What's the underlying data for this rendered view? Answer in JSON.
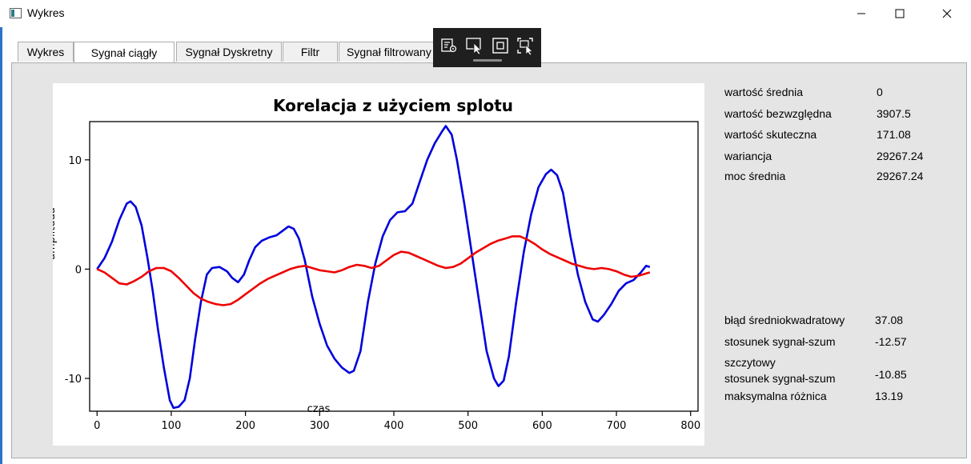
{
  "window": {
    "title": "Wykres",
    "controls": [
      "minimize-icon",
      "maximize-icon",
      "close-icon"
    ]
  },
  "tabs": [
    {
      "label": "Wykres",
      "active": false
    },
    {
      "label": "Sygnał ciągły",
      "active": true
    },
    {
      "label": "Sygnał Dyskretny",
      "active": false
    },
    {
      "label": "Filtr",
      "active": false
    },
    {
      "label": "Sygnał filtrowany",
      "active": false
    }
  ],
  "capture_toolbar": {
    "icons": [
      "record-settings-icon",
      "select-cursor-icon",
      "fullscreen-capture-icon",
      "region-capture-icon"
    ]
  },
  "stats": [
    {
      "label": "wartość średnia",
      "value": "0"
    },
    {
      "label": "wartość bezwzględna",
      "value": "3907.5"
    },
    {
      "label": "wartość skuteczna",
      "value": "171.08"
    },
    {
      "label": "wariancja",
      "value": "29267.24"
    },
    {
      "label": "moc średnia",
      "value": "29267.24"
    }
  ],
  "errors": [
    {
      "label": "błąd średniokwadratowy",
      "value": "37.08"
    },
    {
      "label": "stosunek sygnał-szum",
      "value": "-12.57"
    },
    {
      "label_line1": "szczytowy",
      "label_line2": "stosunek sygnał-szum",
      "value": "-10.85"
    },
    {
      "label": "maksymalna różnica",
      "value": "13.19"
    }
  ],
  "chart_data": {
    "type": "line",
    "title": "Korelacja z użyciem splotu",
    "xlabel": "czas",
    "ylabel": "amplituda",
    "xlim": [
      -10,
      810
    ],
    "ylim": [
      -13,
      13.5
    ],
    "xticks": [
      0,
      100,
      200,
      300,
      400,
      500,
      600,
      700,
      800
    ],
    "yticks": [
      -10,
      0,
      10
    ],
    "grid": false,
    "series": [
      {
        "color": "#0000dd",
        "points": [
          [
            0,
            0
          ],
          [
            10,
            1
          ],
          [
            20,
            2.5
          ],
          [
            30,
            4.5
          ],
          [
            40,
            6
          ],
          [
            45,
            6.2
          ],
          [
            52,
            5.7
          ],
          [
            60,
            4
          ],
          [
            68,
            1
          ],
          [
            75,
            -2
          ],
          [
            82,
            -5.5
          ],
          [
            90,
            -9
          ],
          [
            98,
            -12
          ],
          [
            103,
            -12.7
          ],
          [
            110,
            -12.6
          ],
          [
            118,
            -12
          ],
          [
            125,
            -10
          ],
          [
            132,
            -6.5
          ],
          [
            140,
            -3
          ],
          [
            148,
            -0.5
          ],
          [
            155,
            0.1
          ],
          [
            165,
            0.2
          ],
          [
            175,
            -0.2
          ],
          [
            182,
            -0.8
          ],
          [
            190,
            -1.2
          ],
          [
            198,
            -0.5
          ],
          [
            205,
            0.8
          ],
          [
            213,
            2
          ],
          [
            222,
            2.6
          ],
          [
            232,
            2.9
          ],
          [
            242,
            3.1
          ],
          [
            250,
            3.5
          ],
          [
            258,
            3.9
          ],
          [
            265,
            3.7
          ],
          [
            272,
            2.8
          ],
          [
            280,
            0.8
          ],
          [
            290,
            -2.5
          ],
          [
            300,
            -5
          ],
          [
            310,
            -7
          ],
          [
            320,
            -8.2
          ],
          [
            330,
            -9
          ],
          [
            340,
            -9.5
          ],
          [
            346,
            -9.3
          ],
          [
            355,
            -7.5
          ],
          [
            365,
            -3
          ],
          [
            375,
            0.5
          ],
          [
            385,
            3
          ],
          [
            395,
            4.5
          ],
          [
            405,
            5.2
          ],
          [
            415,
            5.3
          ],
          [
            425,
            6
          ],
          [
            435,
            8
          ],
          [
            445,
            10
          ],
          [
            455,
            11.5
          ],
          [
            465,
            12.6
          ],
          [
            470,
            13.1
          ],
          [
            478,
            12.3
          ],
          [
            485,
            10
          ],
          [
            495,
            6
          ],
          [
            505,
            1.5
          ],
          [
            515,
            -3
          ],
          [
            525,
            -7.5
          ],
          [
            535,
            -10
          ],
          [
            541,
            -10.7
          ],
          [
            548,
            -10.2
          ],
          [
            555,
            -8
          ],
          [
            565,
            -3
          ],
          [
            575,
            1.5
          ],
          [
            585,
            5
          ],
          [
            595,
            7.5
          ],
          [
            605,
            8.7
          ],
          [
            612,
            9.1
          ],
          [
            620,
            8.6
          ],
          [
            628,
            7
          ],
          [
            638,
            3
          ],
          [
            648,
            -0.5
          ],
          [
            658,
            -3
          ],
          [
            668,
            -4.6
          ],
          [
            675,
            -4.8
          ],
          [
            683,
            -4.2
          ],
          [
            693,
            -3.2
          ],
          [
            703,
            -2
          ],
          [
            713,
            -1.3
          ],
          [
            723,
            -1
          ],
          [
            733,
            -0.3
          ],
          [
            740,
            0.3
          ],
          [
            745,
            0.2
          ]
        ]
      },
      {
        "color": "#ee0000",
        "points": [
          [
            0,
            0
          ],
          [
            10,
            -0.3
          ],
          [
            20,
            -0.8
          ],
          [
            30,
            -1.3
          ],
          [
            40,
            -1.4
          ],
          [
            50,
            -1.1
          ],
          [
            60,
            -0.7
          ],
          [
            70,
            -0.2
          ],
          [
            80,
            0.1
          ],
          [
            90,
            0.1
          ],
          [
            100,
            -0.2
          ],
          [
            110,
            -0.8
          ],
          [
            120,
            -1.5
          ],
          [
            130,
            -2.2
          ],
          [
            140,
            -2.7
          ],
          [
            150,
            -3
          ],
          [
            160,
            -3.2
          ],
          [
            170,
            -3.3
          ],
          [
            180,
            -3.2
          ],
          [
            190,
            -2.8
          ],
          [
            200,
            -2.3
          ],
          [
            210,
            -1.8
          ],
          [
            220,
            -1.3
          ],
          [
            230,
            -0.9
          ],
          [
            240,
            -0.6
          ],
          [
            250,
            -0.3
          ],
          [
            260,
            0
          ],
          [
            270,
            0.2
          ],
          [
            280,
            0.3
          ],
          [
            290,
            0.1
          ],
          [
            300,
            -0.1
          ],
          [
            310,
            -0.2
          ],
          [
            320,
            -0.3
          ],
          [
            330,
            -0.1
          ],
          [
            340,
            0.2
          ],
          [
            350,
            0.4
          ],
          [
            360,
            0.3
          ],
          [
            370,
            0.1
          ],
          [
            380,
            0.3
          ],
          [
            390,
            0.8
          ],
          [
            400,
            1.3
          ],
          [
            410,
            1.6
          ],
          [
            420,
            1.5
          ],
          [
            430,
            1.2
          ],
          [
            440,
            0.9
          ],
          [
            450,
            0.6
          ],
          [
            460,
            0.3
          ],
          [
            470,
            0.1
          ],
          [
            480,
            0.2
          ],
          [
            490,
            0.5
          ],
          [
            500,
            1
          ],
          [
            510,
            1.5
          ],
          [
            520,
            1.9
          ],
          [
            530,
            2.3
          ],
          [
            540,
            2.6
          ],
          [
            550,
            2.8
          ],
          [
            560,
            3
          ],
          [
            570,
            3
          ],
          [
            580,
            2.7
          ],
          [
            590,
            2.3
          ],
          [
            600,
            1.8
          ],
          [
            610,
            1.4
          ],
          [
            620,
            1.1
          ],
          [
            630,
            0.8
          ],
          [
            640,
            0.5
          ],
          [
            650,
            0.3
          ],
          [
            660,
            0.1
          ],
          [
            670,
            0
          ],
          [
            680,
            0.1
          ],
          [
            690,
            0
          ],
          [
            700,
            -0.2
          ],
          [
            710,
            -0.5
          ],
          [
            720,
            -0.7
          ],
          [
            730,
            -0.6
          ],
          [
            740,
            -0.4
          ],
          [
            745,
            -0.3
          ]
        ]
      }
    ]
  }
}
